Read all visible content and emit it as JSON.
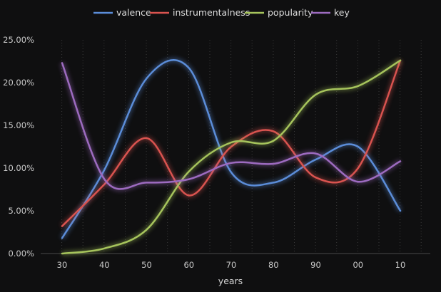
{
  "chart_data": {
    "type": "line",
    "title": "",
    "xlabel": "years",
    "ylabel": "",
    "categories": [
      "30",
      "40",
      "50",
      "60",
      "70",
      "80",
      "90",
      "00",
      "10"
    ],
    "yticks": [
      "0.00%",
      "5.00%",
      "10.00%",
      "15.00%",
      "20.00%",
      "25.00%"
    ],
    "ylim": [
      0,
      25
    ],
    "grid": "vertical dotted",
    "legend_position": "top-center",
    "series": [
      {
        "name": "valence",
        "color": "#5b8dd9",
        "values": [
          1.8,
          9.8,
          20.5,
          21.7,
          9.5,
          8.3,
          11.0,
          12.5,
          5.0
        ]
      },
      {
        "name": "instrumentalness",
        "color": "#d9534f",
        "values": [
          3.2,
          8.1,
          13.5,
          6.8,
          12.5,
          14.3,
          8.9,
          10.0,
          22.6
        ]
      },
      {
        "name": "popularity",
        "color": "#a6c45c",
        "values": [
          0.0,
          0.6,
          2.8,
          9.6,
          13.0,
          13.2,
          18.6,
          19.6,
          22.6
        ]
      },
      {
        "name": "key",
        "color": "#9d6bc0",
        "values": [
          22.3,
          8.7,
          8.3,
          8.7,
          10.6,
          10.5,
          11.7,
          8.4,
          10.8
        ]
      }
    ]
  }
}
